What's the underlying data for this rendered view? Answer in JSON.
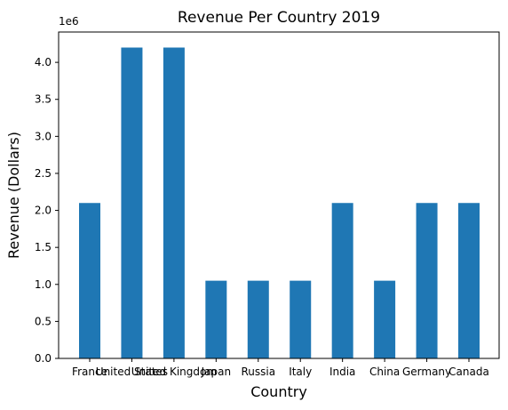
{
  "chart_data": {
    "type": "bar",
    "title": "Revenue Per Country 2019",
    "xlabel": "Country",
    "ylabel": "Revenue (Dollars)",
    "y_offset_label": "1e6",
    "categories": [
      "France",
      "United States",
      "United Kingdom",
      "Japan",
      "Russia",
      "Italy",
      "India",
      "China",
      "Germany",
      "Canada"
    ],
    "values": [
      2100000,
      4200000,
      4200000,
      1050000,
      1050000,
      1050000,
      2100000,
      1050000,
      2100000,
      2100000
    ],
    "ylim": [
      0,
      4410000
    ],
    "yticks": [
      0,
      500000,
      1000000,
      1500000,
      2000000,
      2500000,
      3000000,
      3500000,
      4000000
    ],
    "ytick_labels": [
      "0.0",
      "0.5",
      "1.0",
      "1.5",
      "2.0",
      "2.5",
      "3.0",
      "3.5",
      "4.0"
    ],
    "bar_color": "#1f77b4",
    "grid": false,
    "legend": "none"
  }
}
